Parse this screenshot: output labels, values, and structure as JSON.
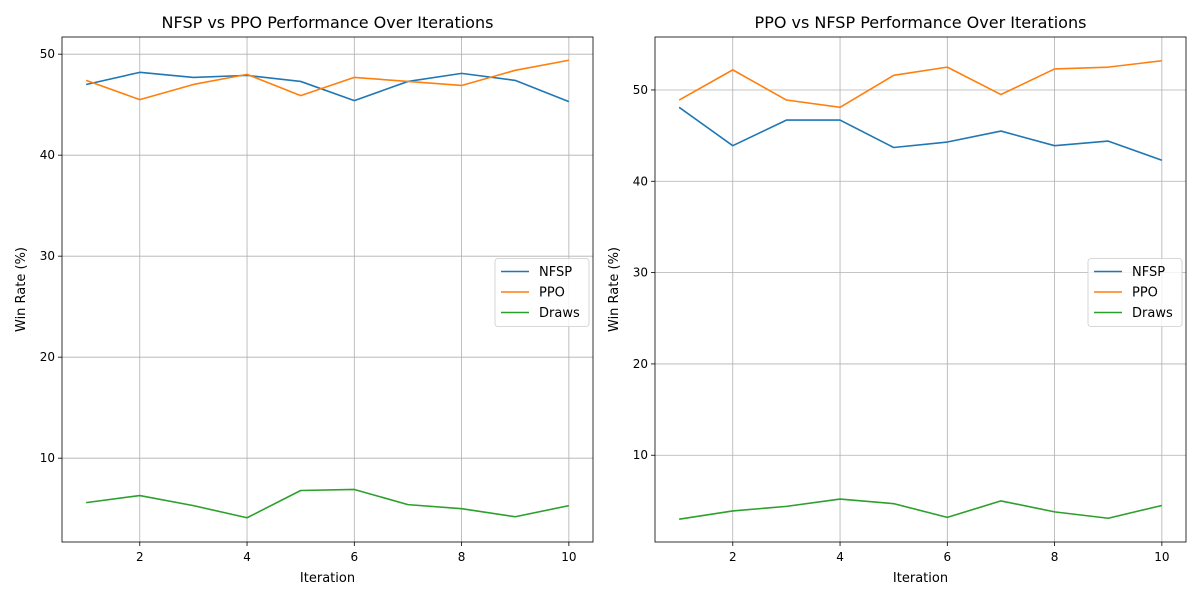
{
  "chart_data": [
    {
      "type": "line",
      "title": "NFSP vs PPO Performance Over Iterations",
      "xlabel": "Iteration",
      "ylabel": "Win Rate (%)",
      "x": [
        1,
        2,
        3,
        4,
        5,
        6,
        7,
        8,
        9,
        10
      ],
      "xlim": [
        0.55,
        10.45
      ],
      "ylim": [
        1.7,
        51.7
      ],
      "xticks": [
        2,
        4,
        6,
        8,
        10
      ],
      "yticks": [
        10,
        20,
        30,
        40,
        50
      ],
      "grid": true,
      "legend_position": "center-right",
      "series": [
        {
          "name": "NFSP",
          "color": "#1f77b4",
          "values": [
            47.0,
            48.2,
            47.7,
            47.9,
            47.3,
            45.4,
            47.3,
            48.1,
            47.4,
            45.3
          ]
        },
        {
          "name": "PPO",
          "color": "#ff7f0e",
          "values": [
            47.4,
            45.5,
            47.0,
            48.0,
            45.9,
            47.7,
            47.3,
            46.9,
            48.4,
            49.4
          ]
        },
        {
          "name": "Draws",
          "color": "#2ca02c",
          "values": [
            5.6,
            6.3,
            5.3,
            4.1,
            6.8,
            6.9,
            5.4,
            5.0,
            4.2,
            5.3
          ]
        }
      ]
    },
    {
      "type": "line",
      "title": "PPO vs NFSP Performance Over Iterations",
      "xlabel": "Iteration",
      "ylabel": "Win Rate (%)",
      "x": [
        1,
        2,
        3,
        4,
        5,
        6,
        7,
        8,
        9,
        10
      ],
      "xlim": [
        0.55,
        10.45
      ],
      "ylim": [
        0.5,
        55.8
      ],
      "xticks": [
        2,
        4,
        6,
        8,
        10
      ],
      "yticks": [
        10,
        20,
        30,
        40,
        50
      ],
      "grid": true,
      "legend_position": "center-right",
      "series": [
        {
          "name": "NFSP",
          "color": "#1f77b4",
          "values": [
            48.1,
            43.9,
            46.7,
            46.7,
            43.7,
            44.3,
            45.5,
            43.9,
            44.4,
            42.3
          ]
        },
        {
          "name": "PPO",
          "color": "#ff7f0e",
          "values": [
            48.9,
            52.2,
            48.9,
            48.1,
            51.6,
            52.5,
            49.5,
            52.3,
            52.5,
            53.2
          ]
        },
        {
          "name": "Draws",
          "color": "#2ca02c",
          "values": [
            3.0,
            3.9,
            4.4,
            5.2,
            4.7,
            3.2,
            5.0,
            3.8,
            3.1,
            4.5
          ]
        }
      ]
    }
  ]
}
